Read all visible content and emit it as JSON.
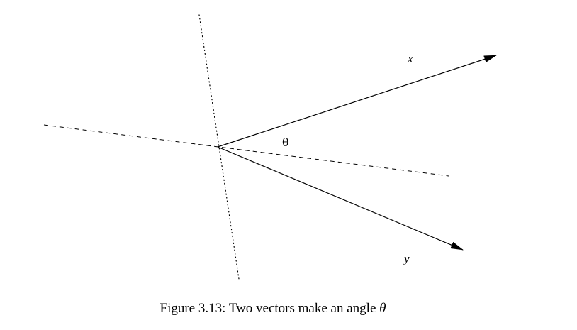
{
  "diagram": {
    "labels": {
      "vector_x": "x",
      "vector_y": "y",
      "angle": "θ"
    }
  },
  "caption": {
    "text": "Figure 3.13: Two vectors make an angle",
    "symbol": "θ"
  }
}
